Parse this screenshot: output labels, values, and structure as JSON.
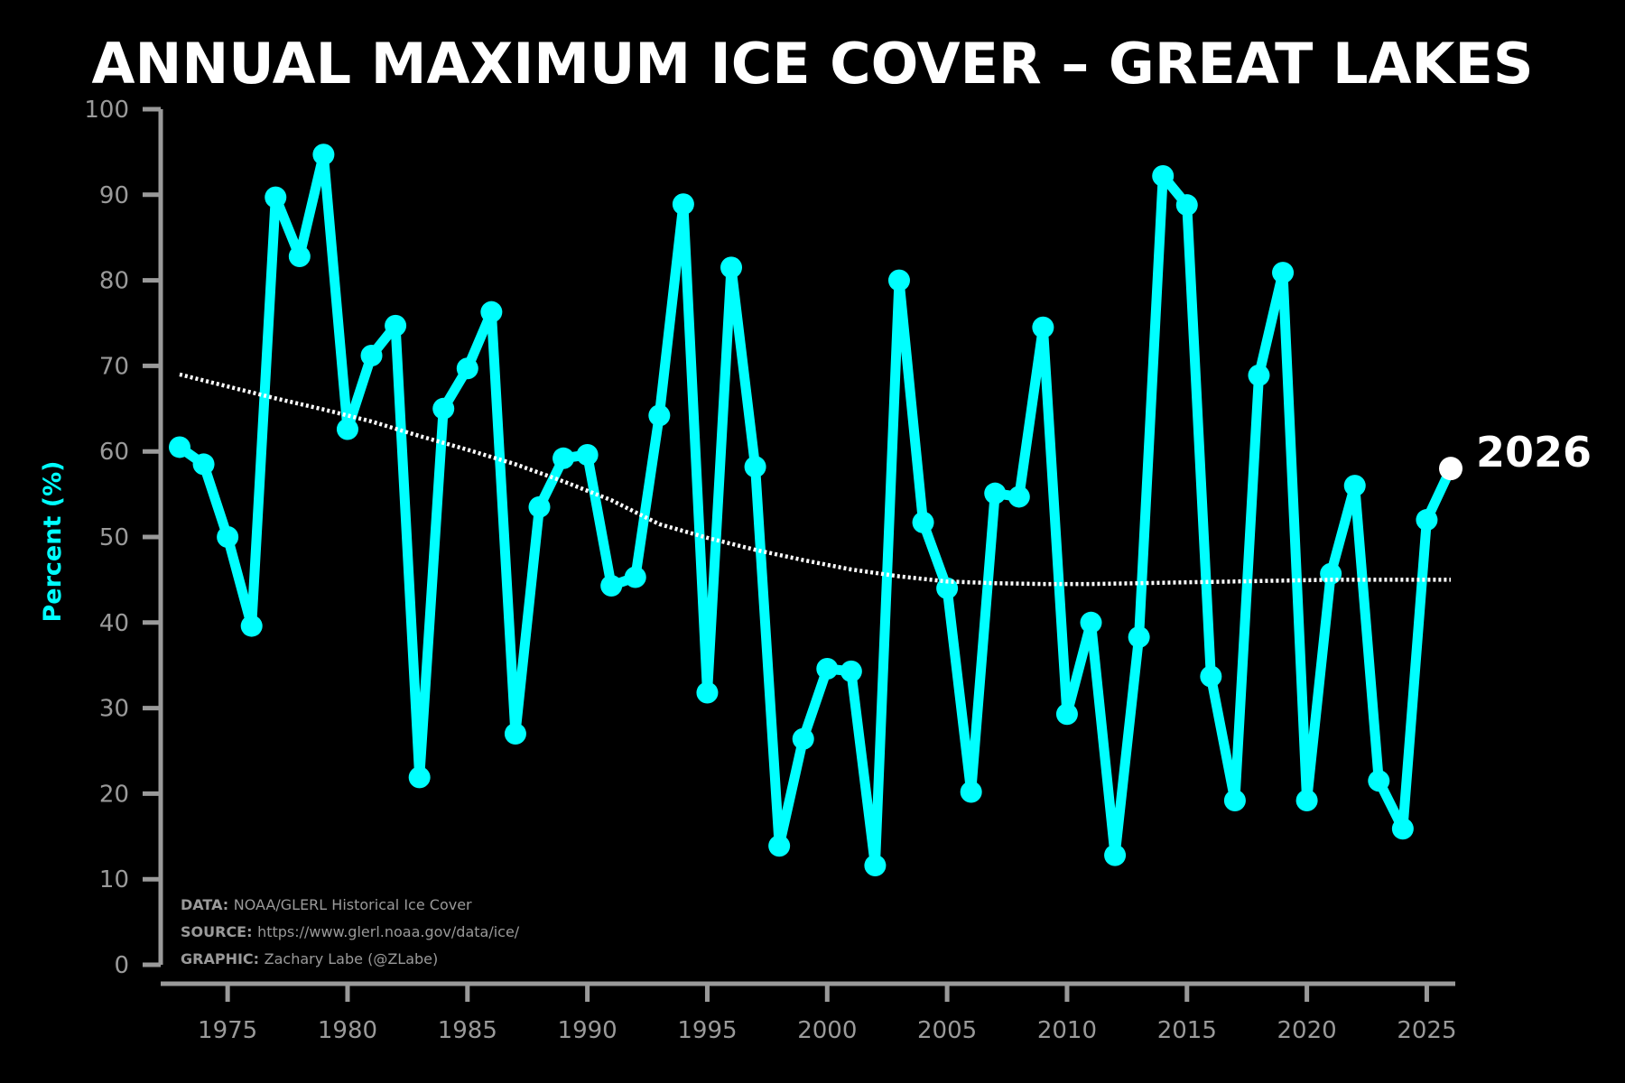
{
  "chart_data": {
    "type": "line",
    "title": "ANNUAL MAXIMUM ICE COVER – GREAT LAKES",
    "ylabel": "Percent (%)",
    "xlabel": "",
    "xlim": [
      1973,
      2026
    ],
    "ylim": [
      0,
      100
    ],
    "x_ticks": [
      1975,
      1980,
      1985,
      1990,
      1995,
      2000,
      2005,
      2010,
      2015,
      2020,
      2025
    ],
    "y_ticks": [
      0,
      10,
      20,
      30,
      40,
      50,
      60,
      70,
      80,
      90,
      100
    ],
    "grid": false,
    "series": [
      {
        "color": "#00ffff",
        "x": [
          1973,
          1974,
          1975,
          1976,
          1977,
          1978,
          1979,
          1980,
          1981,
          1982,
          1983,
          1984,
          1985,
          1986,
          1987,
          1988,
          1989,
          1990,
          1991,
          1992,
          1993,
          1994,
          1995,
          1996,
          1997,
          1998,
          1999,
          2000,
          2001,
          2002,
          2003,
          2004,
          2005,
          2006,
          2007,
          2008,
          2009,
          2010,
          2011,
          2012,
          2013,
          2014,
          2015,
          2016,
          2017,
          2018,
          2019,
          2020,
          2021,
          2022,
          2023,
          2024,
          2025,
          2026
        ],
        "values": [
          60.5,
          58.5,
          50.0,
          39.6,
          89.7,
          82.8,
          94.7,
          62.6,
          71.2,
          74.7,
          21.9,
          65.0,
          69.7,
          76.3,
          27.0,
          53.5,
          59.2,
          59.6,
          44.3,
          45.3,
          64.2,
          88.9,
          31.8,
          81.5,
          58.2,
          13.9,
          26.4,
          34.6,
          34.3,
          11.6,
          80.0,
          51.7,
          44.0,
          20.2,
          55.1,
          54.7,
          74.5,
          29.3,
          40.0,
          12.8,
          38.3,
          92.2,
          88.8,
          33.7,
          19.2,
          68.9,
          80.9,
          19.2,
          45.7,
          56.0,
          21.5,
          15.9,
          52.0,
          58.0
        ]
      },
      {
        "name": "",
        "color": "#ffffff",
        "style": "dotted",
        "x": [
          1973,
          1975,
          1977,
          1979,
          1981,
          1983,
          1985,
          1987,
          1989,
          1991,
          1993,
          1995,
          1997,
          1999,
          2001,
          2003,
          2005,
          2007,
          2009,
          2011,
          2013,
          2015,
          2017,
          2019,
          2021,
          2023,
          2026
        ],
        "values": [
          69.0,
          67.6,
          66.2,
          64.9,
          63.5,
          61.8,
          60.2,
          58.5,
          56.5,
          54.3,
          51.5,
          49.9,
          48.5,
          47.3,
          46.2,
          45.4,
          44.8,
          44.6,
          44.5,
          44.5,
          44.6,
          44.7,
          44.8,
          44.9,
          45.0,
          45.0,
          45.0
        ]
      }
    ],
    "highlight": {
      "x": 2026,
      "value": 58.0,
      "label": "2026",
      "color": "#ffffff"
    },
    "credits": [
      {
        "key": "DATA:",
        "text": "NOAA/GLERL Historical Ice Cover"
      },
      {
        "key": "SOURCE:",
        "text": "https://www.glerl.noaa.gov/data/ice/"
      },
      {
        "key": "GRAPHIC:",
        "text": "Zachary Labe (@ZLabe)"
      }
    ],
    "colors": {
      "background": "#000000",
      "line": "#00ffff",
      "axis": "#9a9a9a",
      "trend": "#ffffff",
      "ylabel": "#00ffff"
    }
  }
}
